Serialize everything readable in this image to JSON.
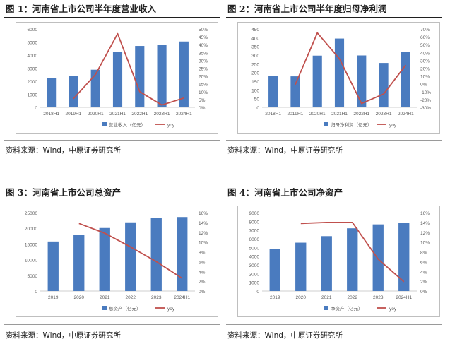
{
  "panels": [
    {
      "title": "图 1：河南省上市公司半年度营业收入",
      "source": "资料来源：Wind，中原证券研究所"
    },
    {
      "title": "图 2：河南省上市公司半年度归母净利润",
      "source": "资料来源：Wind，中原证券研究所"
    },
    {
      "title": "图 3：河南省上市公司总资产",
      "source": "资料来源：Wind，中原证券研究所"
    },
    {
      "title": "图 4：河南省上市公司净资产",
      "source": "资料来源：Wind，中原证券研究所"
    }
  ],
  "colors": {
    "bar": "#4a7bbf",
    "line": "#c0504d",
    "axis": "#7f7f7f",
    "text": "#595959"
  },
  "chart_data": [
    {
      "type": "bar",
      "categories": [
        "2018H1",
        "2019H1",
        "2020H1",
        "2021H1",
        "2022H1",
        "2023H1",
        "2024H1"
      ],
      "series": [
        {
          "name": "营业收入（亿元）",
          "type": "bar",
          "axis": "left",
          "values": [
            2250,
            2380,
            2880,
            4270,
            4700,
            4760,
            5040
          ]
        },
        {
          "name": "yoy",
          "type": "line",
          "axis": "right",
          "values": [
            null,
            5.5,
            21,
            47,
            10,
            1.5,
            6
          ]
        }
      ],
      "y_left": {
        "min": 0,
        "max": 6000,
        "step": 1000,
        "ticks": [
          "0",
          "1000",
          "2000",
          "3000",
          "4000",
          "5000",
          "6000"
        ]
      },
      "y_right": {
        "min": 0,
        "max": 50,
        "step": 5,
        "ticks": [
          "0%",
          "5%",
          "10%",
          "15%",
          "20%",
          "25%",
          "30%",
          "35%",
          "40%",
          "45%",
          "50%"
        ]
      },
      "legend_position": "bottom"
    },
    {
      "type": "bar",
      "categories": [
        "2018H1",
        "2019H1",
        "2020H1",
        "2021H1",
        "2022H1",
        "2023H1",
        "2024H1"
      ],
      "series": [
        {
          "name": "归母净利润（亿元）",
          "type": "bar",
          "axis": "left",
          "values": [
            180,
            178,
            297,
            395,
            298,
            255,
            318
          ]
        },
        {
          "name": "yoy",
          "type": "line",
          "axis": "right",
          "values": [
            null,
            -1,
            65,
            32,
            -25,
            -13,
            24
          ]
        }
      ],
      "y_left": {
        "min": 0,
        "max": 450,
        "step": 50,
        "ticks": [
          "0",
          "50",
          "100",
          "150",
          "200",
          "250",
          "300",
          "350",
          "400",
          "450"
        ]
      },
      "y_right": {
        "min": -30,
        "max": 70,
        "step": 10,
        "ticks": [
          "-30%",
          "-20%",
          "-10%",
          "0%",
          "10%",
          "20%",
          "30%",
          "40%",
          "50%",
          "60%",
          "70%"
        ]
      },
      "legend_position": "bottom"
    },
    {
      "type": "bar",
      "categories": [
        "2019",
        "2020",
        "2021",
        "2022",
        "2023",
        "2024H1"
      ],
      "series": [
        {
          "name": "总资产（亿元）",
          "type": "bar",
          "axis": "left",
          "values": [
            15800,
            18000,
            20100,
            21900,
            23200,
            23600
          ]
        },
        {
          "name": "yoy",
          "type": "line",
          "axis": "right",
          "values": [
            null,
            13.8,
            11.8,
            9,
            6,
            2.6
          ]
        }
      ],
      "y_left": {
        "min": 0,
        "max": 25000,
        "step": 5000,
        "ticks": [
          "0",
          "5000",
          "10000",
          "15000",
          "20000",
          "25000"
        ]
      },
      "y_right": {
        "min": 0,
        "max": 16,
        "step": 2,
        "ticks": [
          "0%",
          "2%",
          "4%",
          "6%",
          "8%",
          "10%",
          "12%",
          "14%",
          "16%"
        ]
      },
      "legend_position": "bottom"
    },
    {
      "type": "bar",
      "categories": [
        "2019",
        "2020",
        "2021",
        "2022",
        "2023",
        "2024H1"
      ],
      "series": [
        {
          "name": "净资产（亿元）",
          "type": "bar",
          "axis": "left",
          "values": [
            4850,
            5550,
            6300,
            7200,
            7650,
            7800
          ]
        },
        {
          "name": "yoy",
          "type": "line",
          "axis": "right",
          "values": [
            null,
            13.8,
            14,
            14,
            6.5,
            1.9
          ]
        }
      ],
      "y_left": {
        "min": 0,
        "max": 9000,
        "step": 1000,
        "ticks": [
          "0",
          "1000",
          "2000",
          "3000",
          "4000",
          "5000",
          "6000",
          "7000",
          "8000",
          "9000"
        ]
      },
      "y_right": {
        "min": 0,
        "max": 16,
        "step": 2,
        "ticks": [
          "0%",
          "2%",
          "4%",
          "6%",
          "8%",
          "10%",
          "12%",
          "14%",
          "16%"
        ]
      },
      "legend_position": "bottom"
    }
  ]
}
